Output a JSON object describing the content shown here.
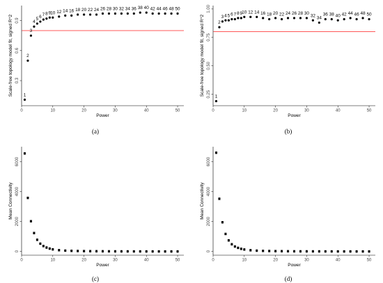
{
  "chart_data": [
    {
      "panel": "a",
      "caption": "(a)",
      "type": "scatter",
      "xlabel": "Power",
      "ylabel": "Scale-free topology model fit, signed R^2",
      "xlim": [
        0,
        52
      ],
      "ylim": [
        0.05,
        1.05
      ],
      "xticks": [
        0,
        10,
        20,
        30,
        40,
        50
      ],
      "yticks": [
        0.3,
        0.6,
        0.9
      ],
      "ytick_labels": [
        "0.3",
        "0.6",
        "0.9"
      ],
      "cutoff_line": 0.8,
      "cutoff_color": "#ff2020",
      "show_point_labels": true,
      "x": [
        1,
        2,
        3,
        4,
        5,
        6,
        7,
        8,
        9,
        10,
        12,
        14,
        16,
        18,
        20,
        22,
        24,
        26,
        28,
        30,
        32,
        34,
        36,
        38,
        40,
        42,
        44,
        46,
        48,
        50
      ],
      "y": [
        0.11,
        0.5,
        0.75,
        0.84,
        0.87,
        0.89,
        0.91,
        0.92,
        0.93,
        0.93,
        0.94,
        0.95,
        0.95,
        0.96,
        0.96,
        0.96,
        0.96,
        0.97,
        0.97,
        0.97,
        0.97,
        0.97,
        0.97,
        0.98,
        0.98,
        0.97,
        0.97,
        0.97,
        0.97,
        0.97
      ],
      "point_labels": [
        "1",
        "2",
        "3",
        "4",
        "5",
        "6",
        "7",
        "8",
        "9",
        "10",
        "12",
        "14",
        "16",
        "18",
        "20",
        "22",
        "24",
        "26",
        "28",
        "30",
        "32",
        "34",
        "36",
        "38",
        "40",
        "42",
        "44",
        "46",
        "48",
        "50"
      ]
    },
    {
      "panel": "b",
      "caption": "(b)",
      "type": "scatter",
      "xlabel": "Power",
      "ylabel": "Scale-free topology model fit, signed R^2",
      "xlim": [
        0,
        52
      ],
      "ylim": [
        0.15,
        1.03
      ],
      "xticks": [
        0,
        10,
        20,
        30,
        40,
        50
      ],
      "yticks": [
        0.25,
        0.5,
        0.75,
        1.0
      ],
      "ytick_labels": [
        "0.25",
        "0.50",
        "0.75",
        "1.00"
      ],
      "cutoff_line": 0.8,
      "cutoff_color": "#ff2020",
      "show_point_labels": true,
      "x": [
        1,
        2,
        3,
        4,
        5,
        6,
        7,
        8,
        9,
        10,
        12,
        14,
        16,
        18,
        20,
        22,
        24,
        26,
        28,
        30,
        32,
        34,
        36,
        38,
        40,
        42,
        44,
        46,
        48,
        50
      ],
      "y": [
        0.19,
        0.84,
        0.89,
        0.9,
        0.9,
        0.91,
        0.91,
        0.92,
        0.92,
        0.93,
        0.93,
        0.93,
        0.92,
        0.91,
        0.92,
        0.91,
        0.92,
        0.92,
        0.92,
        0.92,
        0.9,
        0.88,
        0.91,
        0.91,
        0.9,
        0.91,
        0.92,
        0.91,
        0.92,
        0.91
      ],
      "point_labels": [
        "1",
        "2",
        "3",
        "4",
        "5",
        "6",
        "7",
        "8",
        "9",
        "10",
        "12",
        "14",
        "16",
        "18",
        "20",
        "22",
        "24",
        "26",
        "28",
        "30",
        "32",
        "34",
        "36",
        "38",
        "40",
        "42",
        "44",
        "46",
        "48",
        "50"
      ]
    },
    {
      "panel": "c",
      "caption": "(c)",
      "type": "scatter",
      "xlabel": "Power",
      "ylabel": "Mean Connectivity",
      "xlim": [
        0,
        52
      ],
      "ylim": [
        -250,
        7000
      ],
      "xticks": [
        0,
        10,
        20,
        30,
        40,
        50
      ],
      "yticks": [
        0,
        2000,
        4000,
        6000
      ],
      "ytick_labels": [
        "0",
        "2000",
        "4000",
        "6000"
      ],
      "show_point_labels": false,
      "x": [
        1,
        2,
        3,
        4,
        5,
        6,
        7,
        8,
        9,
        10,
        12,
        14,
        16,
        18,
        20,
        22,
        24,
        26,
        28,
        30,
        32,
        34,
        36,
        38,
        40,
        42,
        44,
        46,
        48,
        50
      ],
      "y": [
        6550,
        3580,
        2020,
        1230,
        780,
        520,
        360,
        260,
        190,
        140,
        85,
        55,
        40,
        30,
        22,
        17,
        13,
        10,
        8,
        6,
        5,
        4,
        3,
        3,
        2,
        2,
        2,
        1,
        1,
        1
      ]
    },
    {
      "panel": "d",
      "caption": "(d)",
      "type": "scatter",
      "xlabel": "Power",
      "ylabel": "Mean Connectivity",
      "xlim": [
        0,
        52
      ],
      "ylim": [
        -250,
        7000
      ],
      "xticks": [
        0,
        10,
        20,
        30,
        40,
        50
      ],
      "yticks": [
        0,
        2000,
        4000,
        6000
      ],
      "ytick_labels": [
        "0",
        "2000",
        "4000",
        "6000"
      ],
      "show_point_labels": false,
      "x": [
        1,
        2,
        3,
        4,
        5,
        6,
        7,
        8,
        9,
        10,
        12,
        14,
        16,
        18,
        20,
        22,
        24,
        26,
        28,
        30,
        32,
        34,
        36,
        38,
        40,
        42,
        44,
        46,
        48,
        50
      ],
      "y": [
        6600,
        3520,
        1950,
        1170,
        740,
        480,
        330,
        240,
        175,
        130,
        80,
        52,
        37,
        28,
        21,
        16,
        12,
        9,
        7,
        6,
        5,
        4,
        3,
        3,
        2,
        2,
        2,
        1,
        1,
        1
      ]
    }
  ]
}
